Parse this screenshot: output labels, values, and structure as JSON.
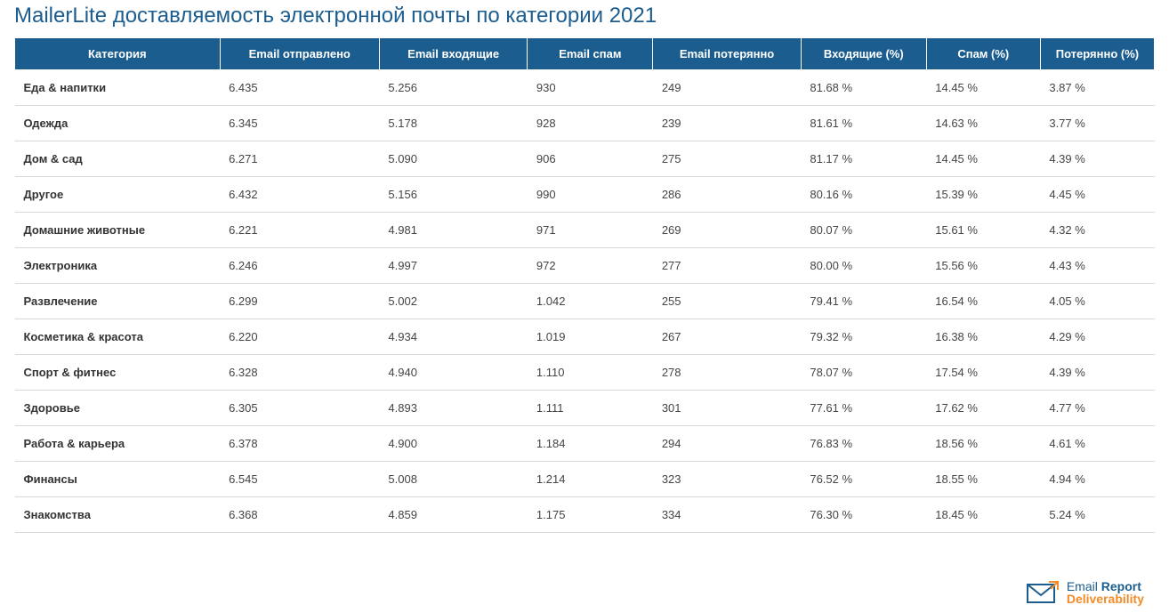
{
  "title": "MailerLite доставляемость электронной почты по категории 2021",
  "table": {
    "type": "table",
    "header_bg": "#1b5d8f",
    "header_fg": "#ffffff",
    "row_border": "#d9d9d9",
    "col_widths_pct": [
      18,
      14,
      13,
      11,
      13,
      11,
      10,
      10
    ],
    "columns": [
      "Категория",
      "Email отправлено",
      "Email входящие",
      "Email спам",
      "Email потерянно",
      "Входящие (%)",
      "Спам (%)",
      "Потерянно (%)"
    ],
    "rows": [
      [
        "Еда & напитки",
        "6.435",
        "5.256",
        "930",
        "249",
        "81.68 %",
        "14.45 %",
        "3.87 %"
      ],
      [
        "Одежда",
        "6.345",
        "5.178",
        "928",
        "239",
        "81.61 %",
        "14.63 %",
        "3.77 %"
      ],
      [
        "Дом & сад",
        "6.271",
        "5.090",
        "906",
        "275",
        "81.17 %",
        "14.45 %",
        "4.39 %"
      ],
      [
        "Другое",
        "6.432",
        "5.156",
        "990",
        "286",
        "80.16 %",
        "15.39 %",
        "4.45 %"
      ],
      [
        "Домашние животные",
        "6.221",
        "4.981",
        "971",
        "269",
        "80.07 %",
        "15.61 %",
        "4.32 %"
      ],
      [
        "Электроника",
        "6.246",
        "4.997",
        "972",
        "277",
        "80.00 %",
        "15.56 %",
        "4.43 %"
      ],
      [
        "Развлечение",
        "6.299",
        "5.002",
        "1.042",
        "255",
        "79.41 %",
        "16.54 %",
        "4.05 %"
      ],
      [
        "Косметика & красота",
        "6.220",
        "4.934",
        "1.019",
        "267",
        "79.32 %",
        "16.38 %",
        "4.29 %"
      ],
      [
        "Спорт & фитнес",
        "6.328",
        "4.940",
        "1.110",
        "278",
        "78.07 %",
        "17.54 %",
        "4.39 %"
      ],
      [
        "Здоровье",
        "6.305",
        "4.893",
        "1.111",
        "301",
        "77.61 %",
        "17.62 %",
        "4.77 %"
      ],
      [
        "Работа & карьера",
        "6.378",
        "4.900",
        "1.184",
        "294",
        "76.83 %",
        "18.56 %",
        "4.61 %"
      ],
      [
        "Финансы",
        "6.545",
        "5.008",
        "1.214",
        "323",
        "76.52 %",
        "18.55 %",
        "4.94 %"
      ],
      [
        "Знакомства",
        "6.368",
        "4.859",
        "1.175",
        "334",
        "76.30 %",
        "18.45 %",
        "5.24 %"
      ]
    ]
  },
  "logo": {
    "line1_a": "Email ",
    "line1_b": "Report",
    "line2": "Deliverability",
    "icon_color": "#1b5d8f",
    "accent_color": "#f28c28"
  }
}
